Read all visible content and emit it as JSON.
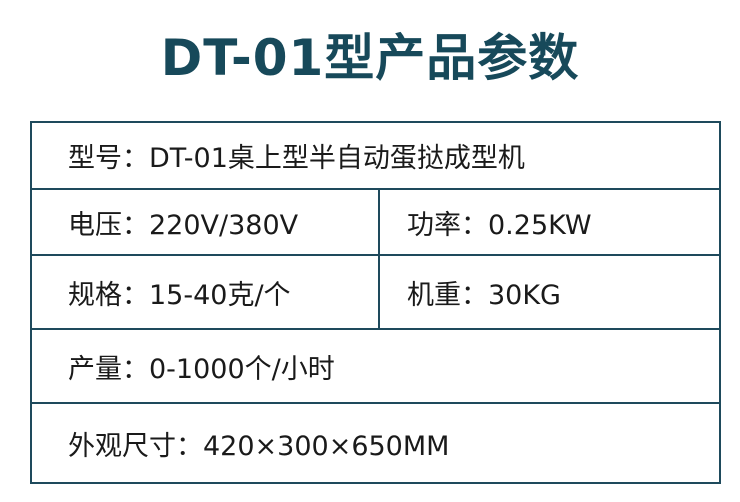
{
  "title": "DT-01型产品参数",
  "rows": {
    "model": {
      "label": "型号：",
      "value": "DT-01桌上型半自动蛋挞成型机"
    },
    "voltage": {
      "label": "电压：",
      "value": "220V/380V"
    },
    "power": {
      "label": "功率：",
      "value": "0.25KW"
    },
    "spec": {
      "label": "规格：",
      "value": "15-40克/个"
    },
    "weight": {
      "label": "机重：",
      "value": "30KG"
    },
    "output": {
      "label": "产量：",
      "value": "0-1000个/小时"
    },
    "dimensions": {
      "label": "外观尺寸：",
      "value": "420×300×650MM"
    }
  }
}
